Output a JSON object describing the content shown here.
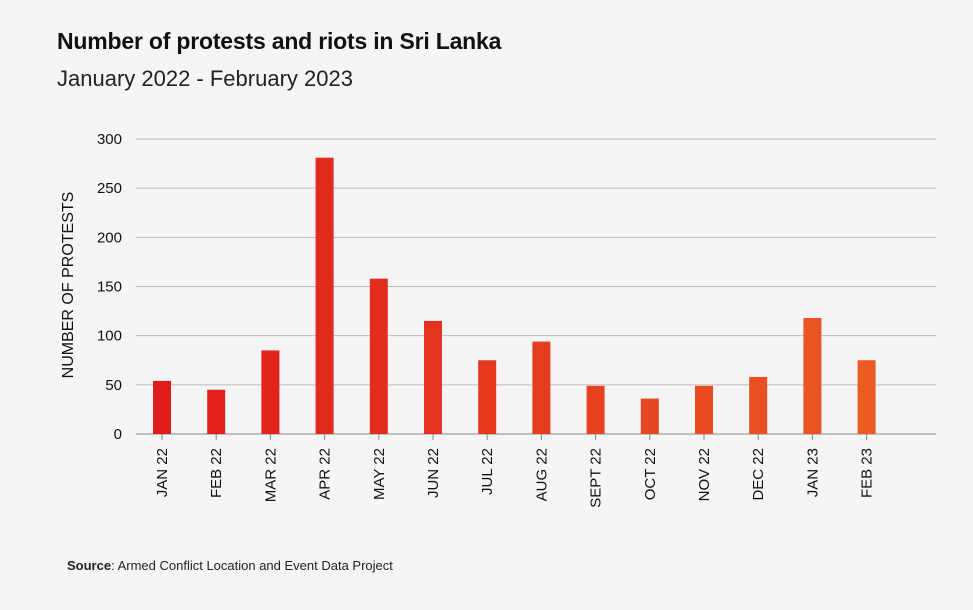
{
  "chart_data": {
    "type": "bar",
    "title": "Number of protests and riots in Sri Lanka",
    "subtitle": "January 2022 - February 2023",
    "xlabel": "",
    "ylabel": "NUMBER OF PROTESTS",
    "ylim": [
      0,
      300
    ],
    "yticks": [
      0,
      50,
      100,
      150,
      200,
      250,
      300
    ],
    "grid": true,
    "categories": [
      "JAN 22",
      "FEB 22",
      "MAR 22",
      "APR 22",
      "MAY 22",
      "JUN 22",
      "JUL 22",
      "AUG 22",
      "SEPT 22",
      "OCT 22",
      "NOV 22",
      "DEC 22",
      "JAN 23",
      "FEB 23"
    ],
    "values": [
      54,
      45,
      85,
      281,
      158,
      115,
      75,
      94,
      49,
      36,
      49,
      58,
      118,
      75
    ],
    "colors": {
      "start": "#e01b1b",
      "end": "#ea5a22",
      "grid": "#bbbbbb"
    }
  },
  "source": {
    "label": "Source",
    "text": ": Armed Conflict Location and Event Data Project"
  }
}
